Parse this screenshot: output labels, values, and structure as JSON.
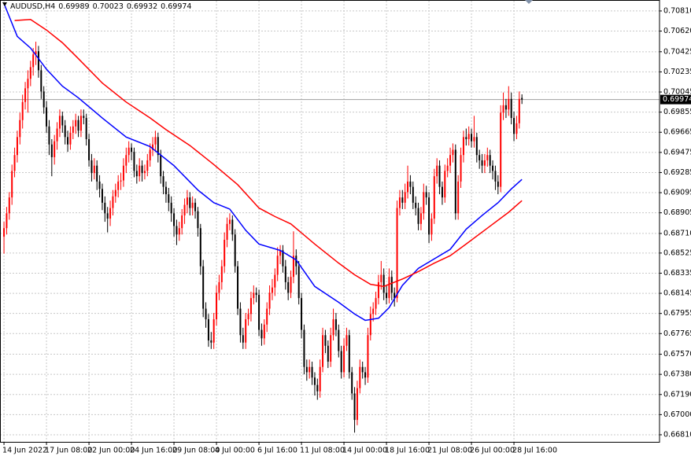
{
  "chart_data": {
    "type": "candlestick",
    "symbol": "AUDUSD,H4",
    "up_color": "#ff0000",
    "down_color": "#000000",
    "grid": true,
    "last_price_line": true,
    "xlim": [
      -1.5,
      246.8
    ],
    "ylim": [
      0.66743,
      0.70906
    ],
    "yticks": [
      {
        "value": 0.7081,
        "label": "0.70810"
      },
      {
        "value": 0.7062,
        "label": "0.70620"
      },
      0.70425,
      0.70235,
      0.70045,
      0.69855,
      0.69665,
      0.69475,
      0.69285,
      0.69095,
      0.68905,
      {
        "value": 0.6871,
        "label": "0.68710"
      },
      0.68525,
      0.68335,
      0.68145,
      0.67955,
      0.67765,
      {
        "value": 0.6757,
        "label": "0.67570"
      },
      {
        "value": 0.6738,
        "label": "0.67380"
      },
      {
        "value": 0.6719,
        "label": "0.67190"
      },
      {
        "value": 0.67,
        "label": "0.67000"
      },
      {
        "value": 0.6681,
        "label": "0.66810"
      }
    ],
    "xticks": [
      {
        "value": 0,
        "label": "14 Jun 2022"
      },
      {
        "value": 16,
        "label": "17 Jun 08:00"
      },
      {
        "value": 32,
        "label": "22 Jun 00:00"
      },
      {
        "value": 48,
        "label": "24 Jun 16:00"
      },
      {
        "value": 64,
        "label": "29 Jun 08:00"
      },
      {
        "value": 80,
        "label": "4 Jul 00:00"
      },
      {
        "value": 96,
        "label": "6 Jul 16:00"
      },
      {
        "value": 112,
        "label": "11 Jul 08:00"
      },
      {
        "value": 128,
        "label": "14 Jul 00:00"
      },
      {
        "value": 144,
        "label": "18 Jul 16:00"
      },
      {
        "value": 160,
        "label": "21 Jul 08:00"
      },
      {
        "value": 176,
        "label": "26 Jul 00:00"
      },
      {
        "value": 192,
        "label": "28 Jul 16:00"
      }
    ],
    "ohlc": [
      [
        0.6868,
        0.6882,
        0.6852,
        0.6876
      ],
      [
        0.6876,
        0.6896,
        0.687,
        0.689
      ],
      [
        0.689,
        0.691,
        0.6884,
        0.6905
      ],
      [
        0.6905,
        0.6936,
        0.6898,
        0.693
      ],
      [
        0.693,
        0.6952,
        0.6924,
        0.6945
      ],
      [
        0.6945,
        0.6968,
        0.6938,
        0.6962
      ],
      [
        0.6962,
        0.6985,
        0.6955,
        0.6978
      ],
      [
        0.6978,
        0.7002,
        0.697,
        0.6995
      ],
      [
        0.6995,
        0.7014,
        0.6988,
        0.7008
      ],
      [
        0.7008,
        0.7025,
        0.6985,
        0.7017
      ],
      [
        0.7017,
        0.7034,
        0.701,
        0.7028
      ],
      [
        0.7028,
        0.7046,
        0.702,
        0.704
      ],
      [
        0.704,
        0.7052,
        0.703,
        0.7043
      ],
      [
        0.7043,
        0.7048,
        0.7018,
        0.7025
      ],
      [
        0.7025,
        0.703,
        0.6998,
        0.7005
      ],
      [
        0.7005,
        0.701,
        0.6984,
        0.699
      ],
      [
        0.699,
        0.6996,
        0.6966,
        0.6972
      ],
      [
        0.6972,
        0.6978,
        0.6945,
        0.6955
      ],
      [
        0.6955,
        0.696,
        0.6925,
        0.6943
      ],
      [
        0.6943,
        0.6964,
        0.6936,
        0.6958
      ],
      [
        0.6958,
        0.6976,
        0.695,
        0.697
      ],
      [
        0.697,
        0.6988,
        0.6962,
        0.6982
      ],
      [
        0.6982,
        0.6986,
        0.6966,
        0.6973
      ],
      [
        0.6973,
        0.6978,
        0.6955,
        0.6962
      ],
      [
        0.6962,
        0.6968,
        0.6948,
        0.6955
      ],
      [
        0.6955,
        0.6972,
        0.695,
        0.6966
      ],
      [
        0.6966,
        0.6978,
        0.696,
        0.6972
      ],
      [
        0.6972,
        0.6984,
        0.6965,
        0.6978
      ],
      [
        0.6978,
        0.6982,
        0.6962,
        0.6968
      ],
      [
        0.6968,
        0.6988,
        0.6962,
        0.6982
      ],
      [
        0.6982,
        0.6988,
        0.6974,
        0.698
      ],
      [
        0.698,
        0.6984,
        0.6954,
        0.696
      ],
      [
        0.696,
        0.6965,
        0.6934,
        0.694
      ],
      [
        0.694,
        0.6946,
        0.692,
        0.6928
      ],
      [
        0.6928,
        0.6942,
        0.6922,
        0.6935
      ],
      [
        0.6935,
        0.694,
        0.6912,
        0.692
      ],
      [
        0.692,
        0.6926,
        0.6905,
        0.6913
      ],
      [
        0.6913,
        0.6918,
        0.6893,
        0.69
      ],
      [
        0.69,
        0.6906,
        0.6882,
        0.689
      ],
      [
        0.689,
        0.6896,
        0.6872,
        0.6885
      ],
      [
        0.6885,
        0.6902,
        0.6878,
        0.6895
      ],
      [
        0.6895,
        0.6912,
        0.6888,
        0.6906
      ],
      [
        0.6906,
        0.6918,
        0.69,
        0.6912
      ],
      [
        0.6912,
        0.6926,
        0.6905,
        0.692
      ],
      [
        0.692,
        0.6928,
        0.6912,
        0.6921
      ],
      [
        0.6921,
        0.6942,
        0.6915,
        0.6935
      ],
      [
        0.6935,
        0.6952,
        0.6928,
        0.6945
      ],
      [
        0.6945,
        0.6958,
        0.6938,
        0.6952
      ],
      [
        0.6952,
        0.6956,
        0.694,
        0.6948
      ],
      [
        0.6948,
        0.6952,
        0.6924,
        0.693
      ],
      [
        0.693,
        0.6936,
        0.6918,
        0.6925
      ],
      [
        0.6925,
        0.6942,
        0.692,
        0.6935
      ],
      [
        0.6935,
        0.694,
        0.692,
        0.6928
      ],
      [
        0.6928,
        0.6936,
        0.6922,
        0.693
      ],
      [
        0.693,
        0.6946,
        0.6925,
        0.694
      ],
      [
        0.694,
        0.6956,
        0.6934,
        0.695
      ],
      [
        0.695,
        0.6962,
        0.6944,
        0.6955
      ],
      [
        0.6955,
        0.6968,
        0.6948,
        0.6962
      ],
      [
        0.6962,
        0.6966,
        0.6938,
        0.6945
      ],
      [
        0.6945,
        0.695,
        0.6918,
        0.6925
      ],
      [
        0.6925,
        0.693,
        0.6908,
        0.6915
      ],
      [
        0.6915,
        0.692,
        0.69,
        0.6908
      ],
      [
        0.6908,
        0.6914,
        0.6892,
        0.69
      ],
      [
        0.69,
        0.6906,
        0.6882,
        0.689
      ],
      [
        0.689,
        0.6895,
        0.6868,
        0.6878
      ],
      [
        0.6878,
        0.6884,
        0.686,
        0.687
      ],
      [
        0.687,
        0.6882,
        0.6864,
        0.6876
      ],
      [
        0.6876,
        0.6894,
        0.687,
        0.6888
      ],
      [
        0.6888,
        0.6904,
        0.688,
        0.6898
      ],
      [
        0.6898,
        0.6912,
        0.689,
        0.6905
      ],
      [
        0.6905,
        0.691,
        0.6888,
        0.6895
      ],
      [
        0.6895,
        0.6906,
        0.6888,
        0.69
      ],
      [
        0.69,
        0.6904,
        0.6885,
        0.6892
      ],
      [
        0.6892,
        0.6896,
        0.6868,
        0.6876
      ],
      [
        0.6876,
        0.688,
        0.6832,
        0.684
      ],
      [
        0.684,
        0.6846,
        0.6792,
        0.68
      ],
      [
        0.68,
        0.6806,
        0.6782,
        0.679
      ],
      [
        0.679,
        0.6795,
        0.6764,
        0.677
      ],
      [
        0.677,
        0.6778,
        0.6762,
        0.6768
      ],
      [
        0.6768,
        0.6796,
        0.6762,
        0.679
      ],
      [
        0.679,
        0.6822,
        0.6784,
        0.6815
      ],
      [
        0.6815,
        0.6832,
        0.6808,
        0.6825
      ],
      [
        0.6825,
        0.6846,
        0.6818,
        0.684
      ],
      [
        0.684,
        0.6872,
        0.6834,
        0.6865
      ],
      [
        0.6865,
        0.6886,
        0.6858,
        0.688
      ],
      [
        0.688,
        0.689,
        0.6874,
        0.6884
      ],
      [
        0.6884,
        0.6888,
        0.6864,
        0.687
      ],
      [
        0.687,
        0.6875,
        0.6834,
        0.684
      ],
      [
        0.684,
        0.6845,
        0.6794,
        0.68
      ],
      [
        0.68,
        0.6806,
        0.6768,
        0.6775
      ],
      [
        0.6775,
        0.6782,
        0.6762,
        0.6768
      ],
      [
        0.6768,
        0.6796,
        0.6762,
        0.679
      ],
      [
        0.679,
        0.68,
        0.6784,
        0.6795
      ],
      [
        0.6795,
        0.6816,
        0.6788,
        0.681
      ],
      [
        0.681,
        0.6822,
        0.6804,
        0.6815
      ],
      [
        0.6815,
        0.682,
        0.6806,
        0.6813
      ],
      [
        0.6813,
        0.6818,
        0.6774,
        0.678
      ],
      [
        0.678,
        0.6786,
        0.6765,
        0.6772
      ],
      [
        0.6772,
        0.679,
        0.6766,
        0.6785
      ],
      [
        0.6785,
        0.6806,
        0.6778,
        0.68
      ],
      [
        0.68,
        0.6822,
        0.6794,
        0.6815
      ],
      [
        0.6815,
        0.6828,
        0.6808,
        0.682
      ],
      [
        0.682,
        0.6838,
        0.6812,
        0.6832
      ],
      [
        0.6832,
        0.6858,
        0.6826,
        0.685
      ],
      [
        0.685,
        0.686,
        0.6842,
        0.6855
      ],
      [
        0.6855,
        0.686,
        0.6834,
        0.684
      ],
      [
        0.684,
        0.6846,
        0.6818,
        0.6825
      ],
      [
        0.6825,
        0.683,
        0.6808,
        0.6815
      ],
      [
        0.6815,
        0.6836,
        0.681,
        0.683
      ],
      [
        0.683,
        0.6873,
        0.6824,
        0.685
      ],
      [
        0.685,
        0.6856,
        0.6832,
        0.684
      ],
      [
        0.684,
        0.6845,
        0.6804,
        0.681
      ],
      [
        0.681,
        0.6815,
        0.6772,
        0.678
      ],
      [
        0.678,
        0.6785,
        0.6738,
        0.6745
      ],
      [
        0.6745,
        0.6752,
        0.6732,
        0.674
      ],
      [
        0.674,
        0.6752,
        0.6734,
        0.6745
      ],
      [
        0.6745,
        0.675,
        0.6728,
        0.6735
      ],
      [
        0.6735,
        0.674,
        0.6718,
        0.6728
      ],
      [
        0.6728,
        0.6734,
        0.6714,
        0.6722
      ],
      [
        0.6722,
        0.6752,
        0.6716,
        0.6745
      ],
      [
        0.6745,
        0.6782,
        0.674,
        0.6775
      ],
      [
        0.6775,
        0.678,
        0.6758,
        0.6765
      ],
      [
        0.6765,
        0.677,
        0.6744,
        0.675
      ],
      [
        0.675,
        0.6782,
        0.6745,
        0.6775
      ],
      [
        0.6775,
        0.68,
        0.677,
        0.679
      ],
      [
        0.679,
        0.6796,
        0.6774,
        0.678
      ],
      [
        0.678,
        0.6785,
        0.6754,
        0.676
      ],
      [
        0.676,
        0.6765,
        0.6734,
        0.674
      ],
      [
        0.674,
        0.6772,
        0.6735,
        0.6765
      ],
      [
        0.6765,
        0.6782,
        0.676,
        0.6775
      ],
      [
        0.6775,
        0.678,
        0.6734,
        0.674
      ],
      [
        0.674,
        0.6745,
        0.6714,
        0.672
      ],
      [
        0.672,
        0.6726,
        0.6683,
        0.6695
      ],
      [
        0.6695,
        0.6732,
        0.669,
        0.6725
      ],
      [
        0.6725,
        0.6752,
        0.672,
        0.6745
      ],
      [
        0.6745,
        0.675,
        0.6734,
        0.674
      ],
      [
        0.674,
        0.6745,
        0.6728,
        0.6735
      ],
      [
        0.6735,
        0.6782,
        0.673,
        0.6775
      ],
      [
        0.6775,
        0.6802,
        0.677,
        0.6795
      ],
      [
        0.6795,
        0.6806,
        0.6788,
        0.68
      ],
      [
        0.68,
        0.6816,
        0.6794,
        0.681
      ],
      [
        0.681,
        0.6832,
        0.6804,
        0.6825
      ],
      [
        0.6825,
        0.6845,
        0.6818,
        0.6832
      ],
      [
        0.6832,
        0.6838,
        0.6808,
        0.6815
      ],
      [
        0.6815,
        0.6822,
        0.6804,
        0.681
      ],
      [
        0.681,
        0.6838,
        0.6805,
        0.683
      ],
      [
        0.683,
        0.6836,
        0.6808,
        0.6815
      ],
      [
        0.6815,
        0.682,
        0.6802,
        0.681
      ],
      [
        0.681,
        0.6902,
        0.6806,
        0.6895
      ],
      [
        0.6895,
        0.6912,
        0.6888,
        0.6905
      ],
      [
        0.6905,
        0.6912,
        0.6894,
        0.69
      ],
      [
        0.69,
        0.6918,
        0.6894,
        0.691
      ],
      [
        0.691,
        0.6935,
        0.6904,
        0.692
      ],
      [
        0.692,
        0.6926,
        0.6908,
        0.6915
      ],
      [
        0.6915,
        0.692,
        0.6894,
        0.69
      ],
      [
        0.69,
        0.6906,
        0.6888,
        0.6895
      ],
      [
        0.6895,
        0.69,
        0.6874,
        0.688
      ],
      [
        0.688,
        0.6896,
        0.6874,
        0.689
      ],
      [
        0.689,
        0.6918,
        0.6884,
        0.691
      ],
      [
        0.691,
        0.6916,
        0.6898,
        0.6905
      ],
      [
        0.6905,
        0.691,
        0.6862,
        0.687
      ],
      [
        0.687,
        0.689,
        0.6864,
        0.6885
      ],
      [
        0.6885,
        0.6932,
        0.688,
        0.6925
      ],
      [
        0.6925,
        0.6942,
        0.6918,
        0.6935
      ],
      [
        0.6935,
        0.694,
        0.6908,
        0.6915
      ],
      [
        0.6915,
        0.692,
        0.6898,
        0.6905
      ],
      [
        0.6905,
        0.6936,
        0.69,
        0.693
      ],
      [
        0.693,
        0.6942,
        0.6924,
        0.6935
      ],
      [
        0.6935,
        0.6952,
        0.6928,
        0.6945
      ],
      [
        0.6945,
        0.6956,
        0.6938,
        0.695
      ],
      [
        0.695,
        0.6955,
        0.6884,
        0.689
      ],
      [
        0.689,
        0.6926,
        0.6884,
        0.692
      ],
      [
        0.692,
        0.6952,
        0.6914,
        0.6945
      ],
      [
        0.6945,
        0.6968,
        0.6938,
        0.6962
      ],
      [
        0.6962,
        0.697,
        0.6954,
        0.696
      ],
      [
        0.696,
        0.6972,
        0.6954,
        0.6965
      ],
      [
        0.6965,
        0.697,
        0.6952,
        0.6958
      ],
      [
        0.6958,
        0.6982,
        0.6952,
        0.6962
      ],
      [
        0.6962,
        0.6966,
        0.6938,
        0.6945
      ],
      [
        0.6945,
        0.695,
        0.6932,
        0.694
      ],
      [
        0.694,
        0.6946,
        0.6928,
        0.6935
      ],
      [
        0.6935,
        0.6946,
        0.6928,
        0.694
      ],
      [
        0.694,
        0.6952,
        0.6934,
        0.6945
      ],
      [
        0.6945,
        0.695,
        0.6928,
        0.6935
      ],
      [
        0.6935,
        0.694,
        0.6922,
        0.693
      ],
      [
        0.693,
        0.6935,
        0.6912,
        0.692
      ],
      [
        0.692,
        0.6926,
        0.6908,
        0.6915
      ],
      [
        0.6915,
        0.6992,
        0.691,
        0.6985
      ],
      [
        0.6985,
        0.7004,
        0.6978,
        0.6992
      ],
      [
        0.6992,
        0.6998,
        0.698,
        0.6988
      ],
      [
        0.6988,
        0.701,
        0.6982,
        0.6998
      ],
      [
        0.6998,
        0.7004,
        0.6974,
        0.698
      ],
      [
        0.698,
        0.6986,
        0.6958,
        0.6965
      ],
      [
        0.6965,
        0.6982,
        0.696,
        0.6975
      ],
      [
        0.6975,
        0.7005,
        0.697,
        0.6998
      ],
      [
        0.69989,
        0.70023,
        0.69932,
        0.69974
      ]
    ],
    "series": [
      {
        "color": "#0000ff",
        "x": [
          0,
          5,
          10,
          16,
          22,
          28,
          37,
          46,
          55,
          64,
          73,
          79,
          85,
          91,
          96,
          104,
          110,
          117,
          126,
          132,
          136,
          141,
          145,
          150,
          156,
          162,
          168,
          174,
          180,
          186,
          191,
          195
        ],
        "values": [
          0.7088,
          0.7057,
          0.7046,
          0.7026,
          0.701,
          0.6999,
          0.698,
          0.6962,
          0.6953,
          0.6935,
          0.6912,
          0.69,
          0.6894,
          0.6874,
          0.6861,
          0.6855,
          0.6846,
          0.6821,
          0.6806,
          0.6795,
          0.6789,
          0.6791,
          0.6801,
          0.6822,
          0.6838,
          0.6847,
          0.6856,
          0.6875,
          0.6888,
          0.69,
          0.6913,
          0.6922
        ]
      },
      {
        "color": "#ff0000",
        "x": [
          4,
          10,
          16,
          22,
          28,
          37,
          46,
          55,
          61,
          70,
          79,
          88,
          96,
          102,
          108,
          117,
          126,
          132,
          138,
          143,
          150,
          156,
          162,
          168,
          174,
          182,
          190,
          195
        ],
        "values": [
          0.7072,
          0.7073,
          0.7063,
          0.7051,
          0.7036,
          0.7013,
          0.6995,
          0.698,
          0.6969,
          0.6954,
          0.6936,
          0.6917,
          0.6895,
          0.6887,
          0.688,
          0.6861,
          0.6843,
          0.6832,
          0.6823,
          0.6821,
          0.6828,
          0.6835,
          0.6843,
          0.685,
          0.6861,
          0.6876,
          0.6891,
          0.6902
        ]
      }
    ]
  }
}
